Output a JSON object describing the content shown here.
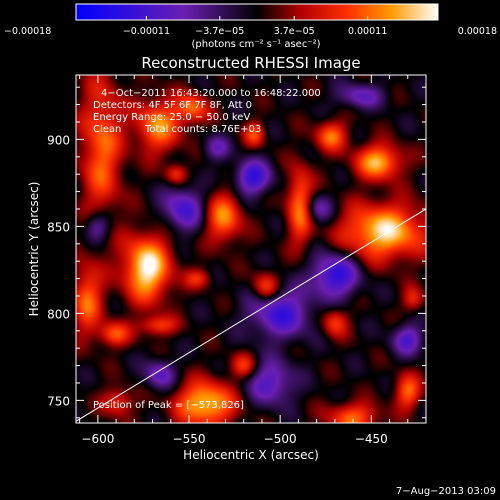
{
  "chart_data": {
    "type": "heatmap",
    "title": "Reconstructed RHESSI Image",
    "xlabel": "Heliocentric X (arcsec)",
    "ylabel": "Heliocentric Y (arcsec)",
    "xlim": [
      -612,
      -420
    ],
    "ylim": [
      737,
      937
    ],
    "x_ticks": [
      -600,
      -550,
      -500,
      -450
    ],
    "x_tick_labels": [
      "−600",
      "−550",
      "−500",
      "−450"
    ],
    "y_ticks": [
      750,
      800,
      850,
      900
    ],
    "y_tick_labels": [
      "750",
      "800",
      "850",
      "900"
    ],
    "colorbar": {
      "range": [
        -0.00018,
        0.00018
      ],
      "ticks": [
        -0.00018,
        -0.00011,
        -3.7e-05,
        3.7e-05,
        0.00011,
        0.00018
      ],
      "tick_labels": [
        "−0.00018",
        "−0.00011",
        "−3.7e−05",
        "3.7e−05",
        "0.00011",
        "0.00018"
      ],
      "unit_label": "(photons cm⁻² s⁻¹ asec⁻²)",
      "colors": [
        "#0000ff",
        "#6a1fb0",
        "#000000",
        "#b00000",
        "#ff3000",
        "#ff9a00",
        "#ffffff"
      ]
    },
    "annotations": [
      "4−Oct−2011 16:43:20.000 to 16:48:22.000",
      "Detectors: 4F 5F 6F 7F 8F, Att 0",
      "Energy Range: 25.0 − 50.0 keV",
      "Clean",
      "Total counts: 8.76E+03"
    ],
    "peak_label": "Position of Peak = [−573,826]",
    "peak_position": [
      -573,
      826
    ],
    "limb_line": [
      [
        -612,
        738
      ],
      [
        -420,
        860
      ]
    ],
    "blobs": [
      {
        "x": -573,
        "y": 826,
        "sx": 9,
        "sy": 13,
        "a": 1.0
      },
      {
        "x": -443,
        "y": 847,
        "sx": 16,
        "sy": 11,
        "a": 0.9
      },
      {
        "x": -541,
        "y": 748,
        "sx": 11,
        "sy": 9,
        "a": 0.88
      },
      {
        "x": -446,
        "y": 887,
        "sx": 9,
        "sy": 7,
        "a": 0.8
      },
      {
        "x": -567,
        "y": 908,
        "sx": 9,
        "sy": 11,
        "a": 0.68
      },
      {
        "x": -548,
        "y": 918,
        "sx": 6,
        "sy": 6,
        "a": 0.6
      },
      {
        "x": -598,
        "y": 895,
        "sx": 8,
        "sy": 30,
        "a": 0.6
      },
      {
        "x": -606,
        "y": 808,
        "sx": 6,
        "sy": 14,
        "a": 0.6
      },
      {
        "x": -531,
        "y": 855,
        "sx": 7,
        "sy": 10,
        "a": 0.68
      },
      {
        "x": -489,
        "y": 862,
        "sx": 5,
        "sy": 15,
        "a": 0.72
      },
      {
        "x": -472,
        "y": 902,
        "sx": 6,
        "sy": 6,
        "a": 0.62
      },
      {
        "x": -514,
        "y": 903,
        "sx": 4,
        "sy": 5,
        "a": 0.5
      },
      {
        "x": -508,
        "y": 815,
        "sx": 5,
        "sy": 6,
        "a": 0.55
      },
      {
        "x": -591,
        "y": 788,
        "sx": 6,
        "sy": 5,
        "a": 0.55
      },
      {
        "x": -567,
        "y": 793,
        "sx": 7,
        "sy": 4,
        "a": 0.5
      },
      {
        "x": -460,
        "y": 740,
        "sx": 10,
        "sy": 6,
        "a": 0.6
      },
      {
        "x": -430,
        "y": 755,
        "sx": 5,
        "sy": 7,
        "a": 0.6
      },
      {
        "x": -470,
        "y": 795,
        "sx": 5,
        "sy": 6,
        "a": 0.5
      },
      {
        "x": -589,
        "y": 749,
        "sx": 6,
        "sy": 6,
        "a": 0.45
      },
      {
        "x": -520,
        "y": 770,
        "sx": 5,
        "sy": 5,
        "a": 0.45
      },
      {
        "x": -545,
        "y": 820,
        "sx": 5,
        "sy": 4,
        "a": 0.4
      },
      {
        "x": -427,
        "y": 808,
        "sx": 4,
        "sy": 5,
        "a": 0.4
      },
      {
        "x": -557,
        "y": 880,
        "sx": 4,
        "sy": 4,
        "a": 0.45
      },
      {
        "x": -515,
        "y": 878,
        "sx": 7,
        "sy": 7,
        "a": -0.7
      },
      {
        "x": -553,
        "y": 860,
        "sx": 8,
        "sy": 9,
        "a": -0.6
      },
      {
        "x": -500,
        "y": 800,
        "sx": 12,
        "sy": 10,
        "a": -0.65
      },
      {
        "x": -470,
        "y": 822,
        "sx": 9,
        "sy": 9,
        "a": -0.75
      },
      {
        "x": -505,
        "y": 760,
        "sx": 9,
        "sy": 9,
        "a": -0.55
      },
      {
        "x": -600,
        "y": 850,
        "sx": 5,
        "sy": 6,
        "a": -0.5
      },
      {
        "x": -456,
        "y": 925,
        "sx": 9,
        "sy": 5,
        "a": -0.45
      },
      {
        "x": -566,
        "y": 765,
        "sx": 6,
        "sy": 6,
        "a": -0.5
      },
      {
        "x": -480,
        "y": 860,
        "sx": 6,
        "sy": 6,
        "a": -0.45
      },
      {
        "x": -430,
        "y": 785,
        "sx": 6,
        "sy": 6,
        "a": -0.55
      },
      {
        "x": -535,
        "y": 895,
        "sx": 5,
        "sy": 5,
        "a": -0.4
      }
    ]
  },
  "footer": {
    "date_stamp": "7−Aug−2013 03:09"
  }
}
